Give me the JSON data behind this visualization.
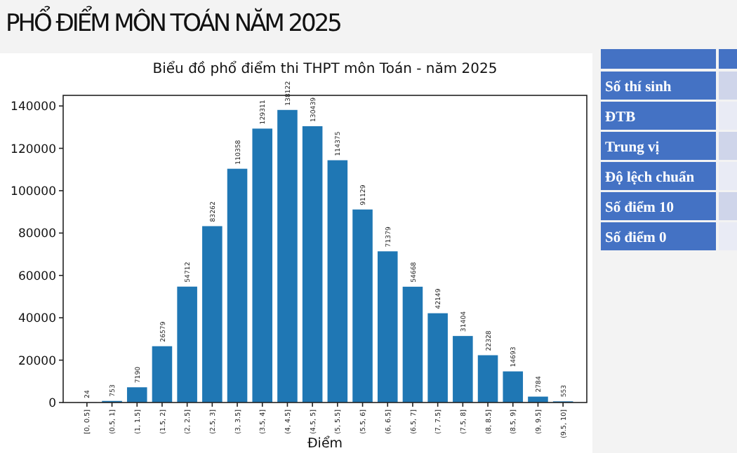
{
  "chart_data": [
    {
      "type": "bar",
      "title": "Biểu đồ phổ điểm thi THPT môn Toán - năm 2025",
      "xlabel": "Điểm",
      "categories": [
        "[0, 0.5]",
        "(0.5, 1]",
        "(1, 1.5]",
        "(1.5, 2]",
        "(2, 2.5]",
        "(2.5, 3]",
        "(3, 3.5]",
        "(3.5, 4]",
        "(4, 4.5]",
        "(4.5, 5]",
        "(5, 5.5]",
        "(5.5, 6]",
        "(6, 6.5]",
        "(6.5, 7]",
        "(7, 7.5]",
        "(7.5, 8]",
        "(8, 8.5]",
        "(8.5, 9]",
        "(9, 9.5]",
        "(9.5, 10]"
      ],
      "values": [
        24,
        753,
        7190,
        26579,
        54712,
        83262,
        110358,
        129311,
        138122,
        130439,
        114375,
        91129,
        71379,
        54668,
        42149,
        31404,
        22328,
        14693,
        2784,
        553
      ],
      "color": "#1f77b4",
      "ylim": [
        0,
        145000
      ],
      "yticks": [
        0,
        20000,
        40000,
        60000,
        80000,
        100000,
        120000,
        140000
      ],
      "data_labels": true,
      "grid": false,
      "annotations": [
        "PHỔ ĐIỂM MÔN TOÁN NĂM 2025"
      ]
    },
    {
      "type": "other",
      "annotations": [
        "Số thí sinh",
        "ĐTB",
        "Trung vị",
        "Độ lệch chuẩn",
        "Số điểm 10",
        "Số điểm 0"
      ]
    }
  ]
}
